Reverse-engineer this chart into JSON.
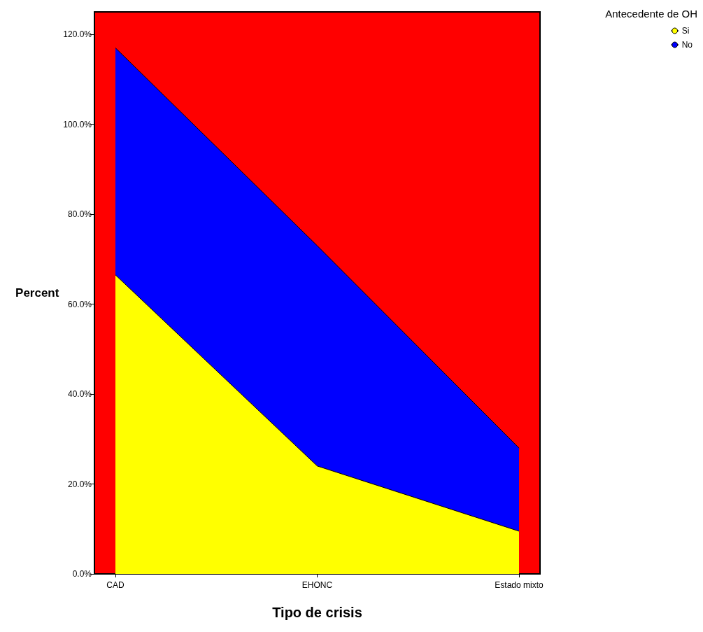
{
  "chart_data": {
    "type": "area",
    "xlabel": "Tipo de crisis",
    "ylabel": "Percent",
    "legend_title": "Antecedente de OH",
    "stacked": true,
    "legend": "top right",
    "categories": [
      "CAD",
      "EHONC",
      "Estado mixto"
    ],
    "series": [
      {
        "name": "Si",
        "color": "#ffff00",
        "values": [
          66.5,
          24,
          9.5
        ]
      },
      {
        "name": "No",
        "color": "#0000ff",
        "values": [
          50.5,
          49,
          18.5
        ]
      }
    ],
    "ylim": [
      0,
      125
    ],
    "yticks": [
      {
        "value": 0,
        "label": "0.0%"
      },
      {
        "value": 20,
        "label": "20.0%"
      },
      {
        "value": 40,
        "label": "40.0%"
      },
      {
        "value": 60,
        "label": "60.0%"
      },
      {
        "value": 80,
        "label": "80.0%"
      },
      {
        "value": 100,
        "label": "100.0%"
      },
      {
        "value": 120,
        "label": "120.0%"
      }
    ],
    "grid": false
  }
}
